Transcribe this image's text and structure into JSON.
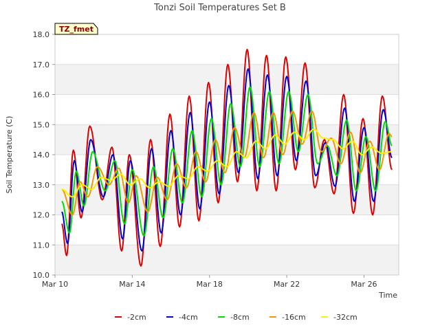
{
  "chart_data": {
    "type": "line",
    "title": "Tonzi Soil Temperatures Set B",
    "xlabel": "Time",
    "ylabel": "Soil Temperature (C)",
    "ylim": [
      10.0,
      18.0
    ],
    "yticks": [
      "10.0",
      "11.0",
      "12.0",
      "13.0",
      "14.0",
      "15.0",
      "16.0",
      "17.0",
      "18.0"
    ],
    "xlim": [
      "Mar 10",
      "Mar 27.8"
    ],
    "xticks": [
      {
        "label": "Mar 10",
        "day": 10
      },
      {
        "label": "Mar 14",
        "day": 14
      },
      {
        "label": "Mar 18",
        "day": 18
      },
      {
        "label": "Mar 22",
        "day": 22
      },
      {
        "label": "Mar 26",
        "day": 26
      }
    ],
    "grid": true,
    "legend_position": "bottom",
    "annotation": "TZ_fmet",
    "series": [
      {
        "name": "-2cm",
        "color": "#dd0000",
        "days": [
          10.35,
          10.6,
          10.95,
          11.35,
          11.8,
          12.45,
          12.95,
          13.45,
          13.85,
          14.45,
          14.95,
          15.45,
          15.95,
          16.45,
          16.95,
          17.45,
          17.95,
          18.45,
          18.95,
          19.45,
          19.95,
          20.45,
          20.95,
          21.45,
          21.95,
          22.45,
          22.95,
          23.45,
          23.95,
          24.45,
          24.95,
          25.45,
          25.95,
          26.45,
          26.95,
          27.45
        ],
        "values": [
          11.7,
          10.65,
          14.15,
          11.9,
          14.95,
          12.5,
          14.25,
          10.8,
          14.0,
          10.3,
          14.5,
          10.95,
          15.35,
          11.6,
          15.95,
          11.8,
          16.4,
          12.4,
          17.0,
          13.1,
          17.5,
          12.8,
          17.3,
          12.8,
          17.25,
          13.5,
          17.05,
          12.9,
          14.5,
          12.7,
          16.0,
          12.05,
          15.2,
          12.0,
          15.95,
          13.5
        ]
      },
      {
        "name": "-4cm",
        "color": "#0000cc",
        "days": [
          10.35,
          10.65,
          11.0,
          11.4,
          11.85,
          12.5,
          13.0,
          13.5,
          13.9,
          14.5,
          15.0,
          15.5,
          16.0,
          16.5,
          17.0,
          17.5,
          18.0,
          18.5,
          19.0,
          19.5,
          20.0,
          20.5,
          21.0,
          21.5,
          22.0,
          22.5,
          23.0,
          23.5,
          24.0,
          24.5,
          25.0,
          25.5,
          26.0,
          26.5,
          27.0,
          27.45
        ],
        "values": [
          12.1,
          11.05,
          13.8,
          12.1,
          14.5,
          12.6,
          14.0,
          11.2,
          13.8,
          10.8,
          14.2,
          11.4,
          14.8,
          12.0,
          15.4,
          12.2,
          15.75,
          12.7,
          16.3,
          13.4,
          16.85,
          13.2,
          16.65,
          13.3,
          16.6,
          13.8,
          16.45,
          13.3,
          14.4,
          12.95,
          15.55,
          12.45,
          14.9,
          12.45,
          15.5,
          13.9
        ]
      },
      {
        "name": "-8cm",
        "color": "#00dd00",
        "days": [
          10.35,
          10.75,
          11.1,
          11.5,
          11.95,
          12.6,
          13.1,
          13.6,
          14.0,
          14.6,
          15.1,
          15.6,
          16.1,
          16.6,
          17.1,
          17.6,
          18.1,
          18.6,
          19.1,
          19.6,
          20.1,
          20.6,
          21.1,
          21.6,
          22.1,
          22.6,
          23.1,
          23.6,
          24.1,
          24.6,
          25.1,
          25.6,
          26.1,
          26.6,
          27.1,
          27.45
        ],
        "values": [
          12.45,
          11.4,
          13.45,
          12.3,
          14.1,
          12.8,
          13.8,
          11.7,
          13.5,
          11.3,
          13.6,
          11.9,
          14.2,
          12.4,
          14.8,
          12.6,
          15.2,
          13.0,
          15.7,
          13.6,
          16.25,
          13.6,
          16.1,
          13.7,
          16.1,
          14.1,
          16.0,
          13.7,
          14.3,
          13.3,
          15.15,
          12.8,
          14.6,
          12.8,
          15.1,
          14.3
        ]
      },
      {
        "name": "-16cm",
        "color": "#ee9900",
        "days": [
          10.35,
          10.9,
          11.3,
          11.7,
          12.2,
          12.8,
          13.3,
          13.8,
          14.2,
          14.8,
          15.3,
          15.8,
          16.3,
          16.8,
          17.3,
          17.8,
          18.3,
          18.8,
          19.3,
          19.8,
          20.3,
          20.8,
          21.3,
          21.8,
          22.3,
          22.8,
          23.3,
          23.8,
          24.3,
          24.8,
          25.3,
          25.8,
          26.3,
          26.8,
          27.3,
          27.45
        ],
        "values": [
          12.85,
          12.0,
          13.1,
          12.6,
          13.6,
          13.0,
          13.55,
          12.4,
          13.3,
          12.1,
          13.25,
          12.5,
          13.7,
          12.9,
          14.1,
          13.1,
          14.5,
          13.4,
          14.9,
          13.9,
          15.4,
          13.9,
          15.4,
          14.0,
          15.45,
          14.35,
          15.45,
          14.1,
          14.55,
          13.7,
          14.75,
          13.4,
          14.45,
          13.5,
          14.7,
          14.6
        ]
      },
      {
        "name": "-32cm",
        "color": "#ffee00",
        "days": [
          10.35,
          10.9,
          11.4,
          11.9,
          12.4,
          12.9,
          13.4,
          13.9,
          14.4,
          14.9,
          15.4,
          15.9,
          16.4,
          16.9,
          17.4,
          17.9,
          18.4,
          18.9,
          19.4,
          19.9,
          20.4,
          20.9,
          21.4,
          21.9,
          22.4,
          22.9,
          23.4,
          23.9,
          24.4,
          24.9,
          25.4,
          25.9,
          26.4,
          26.9,
          27.45
        ],
        "values": [
          12.85,
          12.6,
          13.0,
          12.85,
          13.25,
          13.15,
          13.35,
          13.0,
          13.2,
          12.9,
          13.1,
          12.95,
          13.3,
          13.2,
          13.6,
          13.45,
          13.8,
          13.6,
          14.1,
          13.9,
          14.45,
          14.2,
          14.65,
          14.35,
          14.75,
          14.5,
          14.85,
          14.55,
          14.5,
          14.2,
          14.45,
          14.0,
          14.25,
          14.05,
          14.1
        ]
      }
    ]
  }
}
